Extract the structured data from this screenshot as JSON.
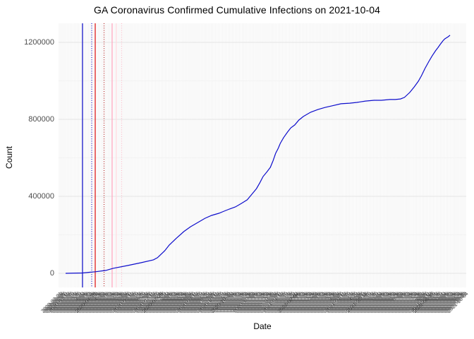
{
  "chart_data": {
    "type": "line",
    "title": "GA Coronavirus Confirmed Cumulative Infections on 2021-10-04",
    "xlabel": "Date",
    "ylabel": "Count",
    "ylim": [
      0,
      1270000
    ],
    "grid": true,
    "legend_position": "none",
    "y_ticks": [
      {
        "label": "0",
        "value": 0
      },
      {
        "label": "400000",
        "value": 400000
      },
      {
        "label": "800000",
        "value": 800000
      },
      {
        "label": "1200000",
        "value": 1200000
      }
    ],
    "y_minor_gridlines": [
      200000,
      600000,
      1000000
    ],
    "x_axis": {
      "start_date": "2020-03-01",
      "end_date": "2021-10-04",
      "tick_step_days": 2,
      "label_format": "YYYY-MM-DD",
      "label_angle_deg": 45
    },
    "series": [
      {
        "name": "confirmed-cumulative-infections",
        "color": "#0D0DCC",
        "dates": [
          "2020-03-01",
          "2020-03-27",
          "2020-04-05",
          "2020-04-15",
          "2020-05-01",
          "2020-05-12",
          "2020-06-02",
          "2020-06-23",
          "2020-07-12",
          "2020-07-18",
          "2020-07-29",
          "2020-08-05",
          "2020-08-16",
          "2020-08-27",
          "2020-09-06",
          "2020-09-17",
          "2020-09-28",
          "2020-10-08",
          "2020-10-19",
          "2020-10-27",
          "2020-11-04",
          "2020-11-13",
          "2020-11-22",
          "2020-12-01",
          "2020-12-08",
          "2020-12-15",
          "2020-12-20",
          "2020-12-25",
          "2020-12-31",
          "2021-01-05",
          "2021-01-09",
          "2021-01-13",
          "2021-01-17",
          "2021-01-20",
          "2021-01-25",
          "2021-01-31",
          "2021-02-05",
          "2021-02-11",
          "2021-02-17",
          "2021-02-24",
          "2021-03-07",
          "2021-03-18",
          "2021-03-29",
          "2021-04-08",
          "2021-04-22",
          "2021-05-05",
          "2021-05-16",
          "2021-05-29",
          "2021-06-11",
          "2021-06-22",
          "2021-07-05",
          "2021-07-13",
          "2021-07-21",
          "2021-07-27",
          "2021-08-04",
          "2021-08-11",
          "2021-08-17",
          "2021-08-22",
          "2021-08-27",
          "2021-09-02",
          "2021-09-07",
          "2021-09-12",
          "2021-09-16",
          "2021-09-19",
          "2021-09-23",
          "2021-09-26",
          "2021-10-01",
          "2021-10-04"
        ],
        "values": [
          0,
          2000,
          5000,
          8000,
          15000,
          26000,
          40000,
          55000,
          70000,
          81000,
          117000,
          147000,
          183000,
          217000,
          242000,
          264000,
          286000,
          301000,
          312000,
          323000,
          334000,
          345000,
          363000,
          382000,
          411000,
          440000,
          470000,
          503000,
          528000,
          551000,
          584000,
          624000,
          650000,
          675000,
          705000,
          734000,
          756000,
          771000,
          796000,
          815000,
          837000,
          851000,
          862000,
          870000,
          881000,
          884000,
          888000,
          895000,
          899000,
          899000,
          903000,
          903000,
          906000,
          914000,
          940000,
          969000,
          998000,
          1028000,
          1064000,
          1101000,
          1130000,
          1156000,
          1174000,
          1189000,
          1207000,
          1218000,
          1229000,
          1237000
        ]
      }
    ],
    "vlines": [
      {
        "x_frac": 0.0588,
        "style": "solid",
        "color": "#1A1ACC"
      },
      {
        "x_frac": 0.0813,
        "style": "dotted",
        "color": "#1A1ACC"
      },
      {
        "x_frac": 0.09,
        "style": "solid",
        "color": "#E02020"
      },
      {
        "x_frac": 0.1116,
        "style": "dotted",
        "color": "#B22222"
      },
      {
        "x_frac": 0.1315,
        "style": "solid",
        "color": "#FFA8C0"
      },
      {
        "x_frac": 0.1419,
        "style": "solid",
        "color": "#FFD9E0"
      },
      {
        "x_frac": 0.1548,
        "style": "dotted",
        "color": "#FFBCCB"
      }
    ]
  },
  "colors": {
    "background": "#FFFFFF",
    "grid_major": "#E4E4E4",
    "grid_minor": "#F0F0F0",
    "grid_vertical_comb": "#ECECEC",
    "tick_label_text": "#4D4D4D",
    "title_text": "#000000"
  }
}
